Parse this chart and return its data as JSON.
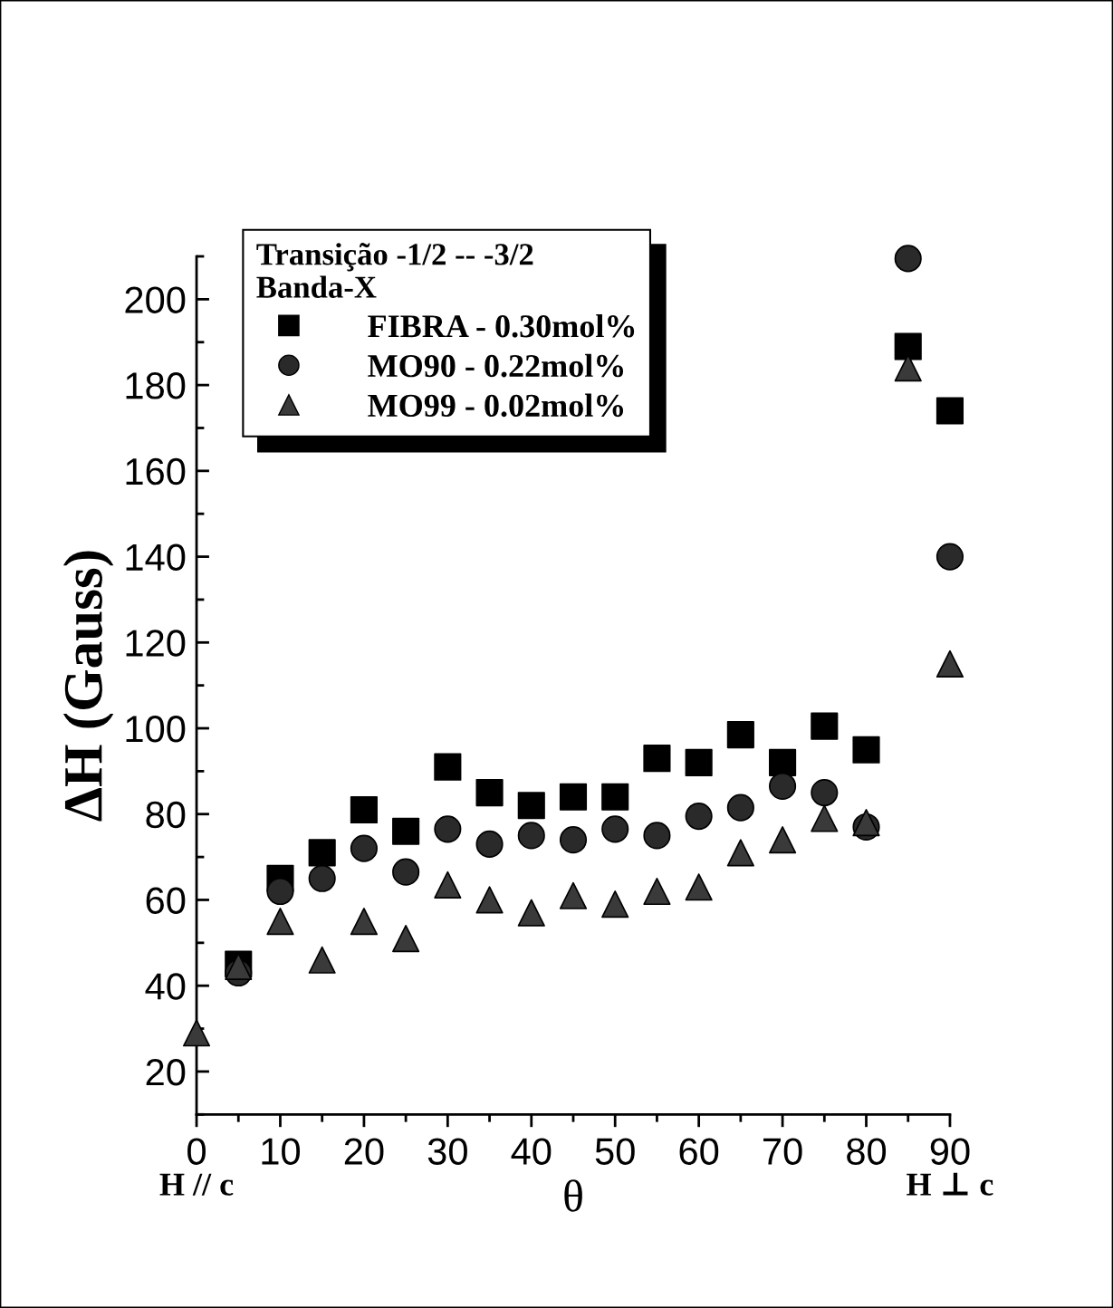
{
  "chart_data": {
    "type": "scatter",
    "xlabel": "θ",
    "ylabel": "ΔH (Gauss)",
    "legend_title": "Transição -1/2 -- -3/2\nBanda-X",
    "x": [
      0,
      5,
      10,
      15,
      20,
      25,
      30,
      35,
      40,
      45,
      50,
      55,
      60,
      65,
      70,
      75,
      80,
      85,
      90
    ],
    "series": [
      {
        "name": "FIBRA - 0.30mol%",
        "color": "#000000",
        "marker": "square",
        "values": [
          null,
          45,
          65,
          71,
          81,
          76,
          91,
          85,
          82,
          84,
          84,
          93,
          92,
          98.5,
          92,
          100.5,
          95,
          189,
          174
        ]
      },
      {
        "name": "MO90 - 0.22mol%",
        "color": "#2a2a2a",
        "marker": "circle",
        "values": [
          null,
          43,
          62,
          65,
          72,
          66.5,
          76.5,
          73,
          75,
          74,
          76.5,
          75,
          79.5,
          81.5,
          86.5,
          85,
          77,
          209.5,
          140
        ]
      },
      {
        "name": "MO99 - 0.02mol%",
        "color": "#3a3a3a",
        "marker": "triangle",
        "values": [
          29,
          44.5,
          55,
          46,
          55,
          51,
          63.5,
          60,
          57,
          61,
          59,
          62,
          63,
          71,
          74,
          79,
          78,
          184,
          115
        ]
      }
    ],
    "xlim": [
      0,
      90
    ],
    "ylim": [
      10,
      210
    ],
    "xticks": [
      0,
      10,
      20,
      30,
      40,
      50,
      60,
      70,
      80,
      90
    ],
    "yticks": [
      20,
      40,
      60,
      80,
      100,
      120,
      140,
      160,
      180,
      200
    ],
    "grid": false,
    "legend": "top left",
    "annotations": [
      "H // c",
      "H ⊥ c"
    ]
  }
}
